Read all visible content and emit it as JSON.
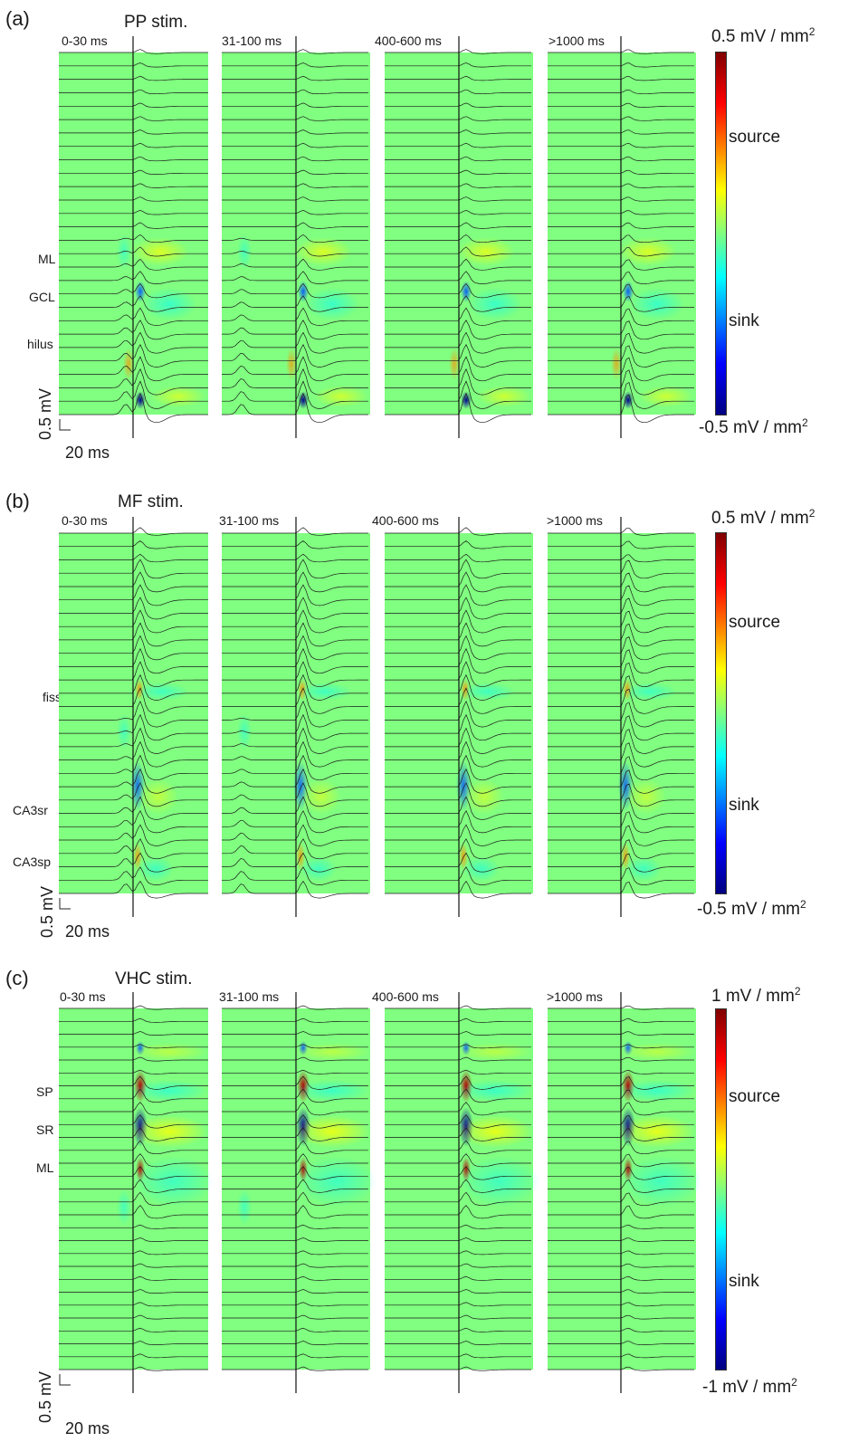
{
  "panels": [
    {
      "letter": "(a)",
      "stimulus": "PP stim.",
      "windows": [
        "0-30 ms",
        "31-100 ms",
        "400-600 ms",
        ">1000 ms"
      ],
      "layers": [
        "ML",
        "GCL",
        "hilus"
      ],
      "colorbar": {
        "max": "0.5 mV / mm",
        "max_sup": "2",
        "min": "-0.5 mV / mm",
        "min_sup": "2",
        "source": "source",
        "sink": "sink"
      },
      "scale": {
        "voltage": "0.5 mV",
        "time": "20 ms"
      }
    },
    {
      "letter": "(b)",
      "stimulus": "MF stim.",
      "windows": [
        "0-30 ms",
        "31-100 ms",
        "400-600 ms",
        ">1000 ms"
      ],
      "layers": [
        "fiss.",
        "CA3sr",
        "CA3sp"
      ],
      "colorbar": {
        "max": "0.5 mV / mm",
        "max_sup": "2",
        "min": "-0.5 mV / mm",
        "min_sup": "2",
        "source": "source",
        "sink": "sink"
      },
      "scale": {
        "voltage": "0.5 mV",
        "time": "20 ms"
      }
    },
    {
      "letter": "(c)",
      "stimulus": "VHC stim.",
      "windows": [
        "0-30 ms",
        "31-100 ms",
        "400-600 ms",
        ">1000 ms"
      ],
      "layers": [
        "SP",
        "SR",
        "ML"
      ],
      "colorbar": {
        "max": "1 mV / mm",
        "max_sup": "2",
        "min": "-1 mV / mm",
        "min_sup": "2",
        "source": "source",
        "sink": "sink"
      },
      "scale": {
        "voltage": "0.5 mV",
        "time": "20 ms"
      }
    }
  ],
  "colors": {
    "background_field": "#80ff80",
    "trace": "#1a1a1a",
    "source": "#ff0000",
    "sink": "#0000ff"
  }
}
